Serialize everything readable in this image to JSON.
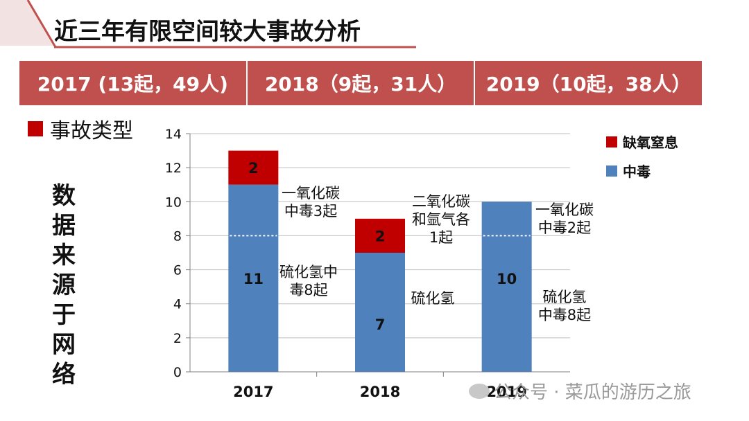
{
  "title": "近三年有限空间较大事故分析",
  "year_summary": [
    "2017 (13起，49人)",
    "2018（9起，31人）",
    "2019（10起，38人）"
  ],
  "category_legend": "事故类型",
  "source_note": [
    "数",
    "据",
    "来",
    "源",
    "于",
    "网",
    "络"
  ],
  "watermark": "公众号 · 菜瓜的游历之旅",
  "colors": {
    "accent": "#c0504d",
    "asphyxia": "#c00000",
    "poisoning": "#4f81bd"
  },
  "chart_data": {
    "type": "bar",
    "stacked": true,
    "categories": [
      "2017",
      "2018",
      "2019"
    ],
    "series": [
      {
        "name": "中毒",
        "values": [
          11,
          7,
          10
        ]
      },
      {
        "name": "缺氧窒息",
        "values": [
          2,
          2,
          0
        ]
      }
    ],
    "ylim": [
      0,
      14
    ],
    "yticks": [
      "0",
      "2",
      "4",
      "6",
      "8",
      "10",
      "12",
      "14"
    ],
    "grid": true,
    "legend_position": "top-right",
    "annotations": [
      {
        "year": "2017",
        "upper": [
          "一氧化碳",
          "中毒3起"
        ],
        "lower": [
          "硫化氢中",
          "毒8起"
        ]
      },
      {
        "year": "2018",
        "upper": [
          "二氧化碳",
          "和氩气各",
          "1起"
        ],
        "lower": [
          "硫化氢"
        ]
      },
      {
        "year": "2019",
        "upper": [
          "一氧化碳",
          "中毒2起"
        ],
        "lower": [
          "硫化氢",
          "中毒8起"
        ]
      }
    ],
    "split_marker_value": 8
  }
}
